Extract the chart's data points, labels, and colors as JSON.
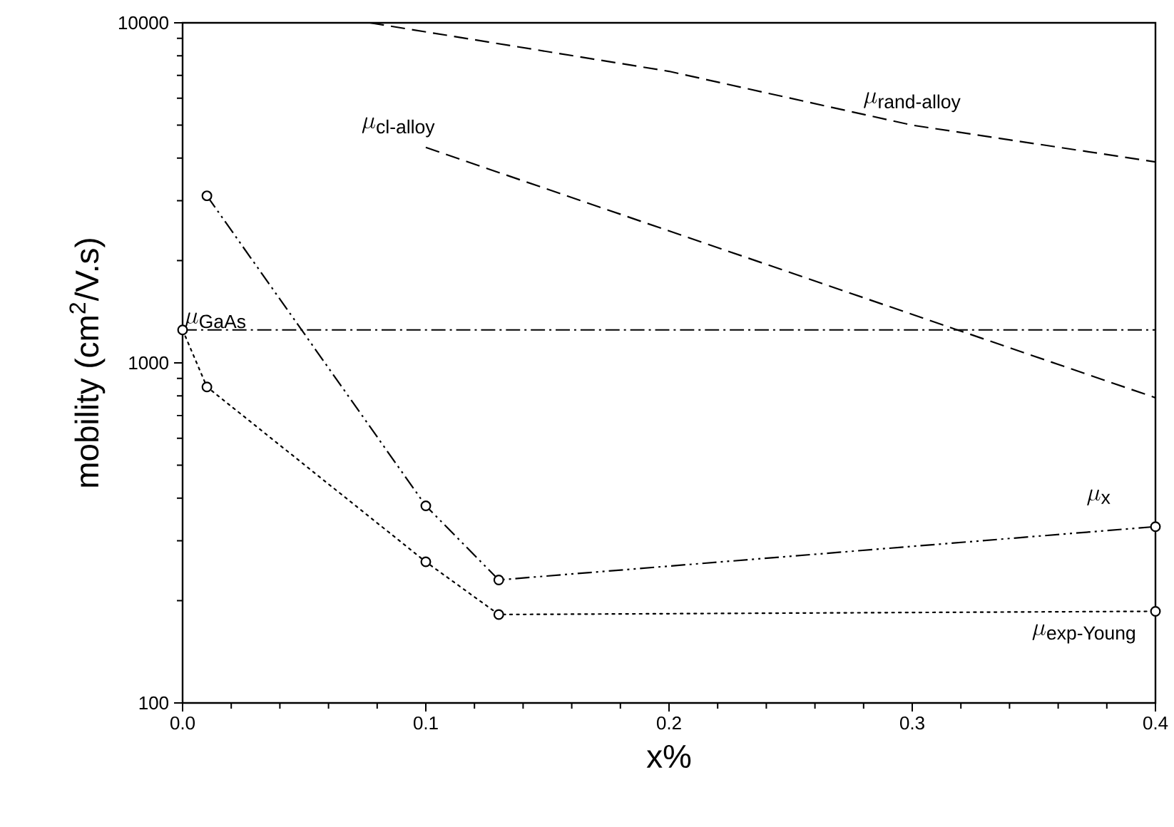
{
  "chart_data": {
    "type": "line",
    "xlabel": "x%",
    "ylabel": "mobility (cm$^{2}$/V.s)",
    "xlim": [
      0,
      0.4
    ],
    "ylim": [
      100,
      10000
    ],
    "log": "y",
    "xticks": [
      {
        "value": 0,
        "label": "0.0"
      },
      0.1,
      0.2,
      0.3,
      0.4
    ],
    "yticks": [
      100,
      1000,
      10000
    ],
    "grid": false,
    "series": [
      {
        "name": "\\mu_{\\text{rand-alloy}}",
        "color": "#000000",
        "line_style": "dashed",
        "marker": "none",
        "x": [
          0.077,
          0.2,
          0.3,
          0.4
        ],
        "values": [
          10000,
          7200,
          5000,
          3900
        ]
      },
      {
        "name": "\\mu_{\\text{cl-alloy}}",
        "color": "#000000",
        "line_style": "dashed",
        "marker": "none",
        "x": [
          0.1,
          0.32,
          0.4
        ],
        "values": [
          4300,
          1240,
          790
        ]
      },
      {
        "name": "\\mu_{\\text{x}}",
        "color": "#000000",
        "line_style": "dashdotdot",
        "marker": "circle",
        "x": [
          0.01,
          0.1,
          0.13,
          0.4
        ],
        "values": [
          3100,
          380,
          230,
          330
        ]
      },
      {
        "name": "\\mu_{\\text{exp-Young}}",
        "color": "#000000",
        "line_style": "dotted",
        "marker": "circle",
        "x": [
          0,
          0.01,
          0.1,
          0.13,
          0.4
        ],
        "values": [
          1250,
          850,
          260,
          182,
          186
        ]
      }
    ],
    "ref_lines": [
      {
        "axis": "y",
        "value": 1250,
        "label": "\\mu_{\\text{GaAs}}",
        "line_style": "dashdot",
        "color": "#000000"
      }
    ]
  }
}
